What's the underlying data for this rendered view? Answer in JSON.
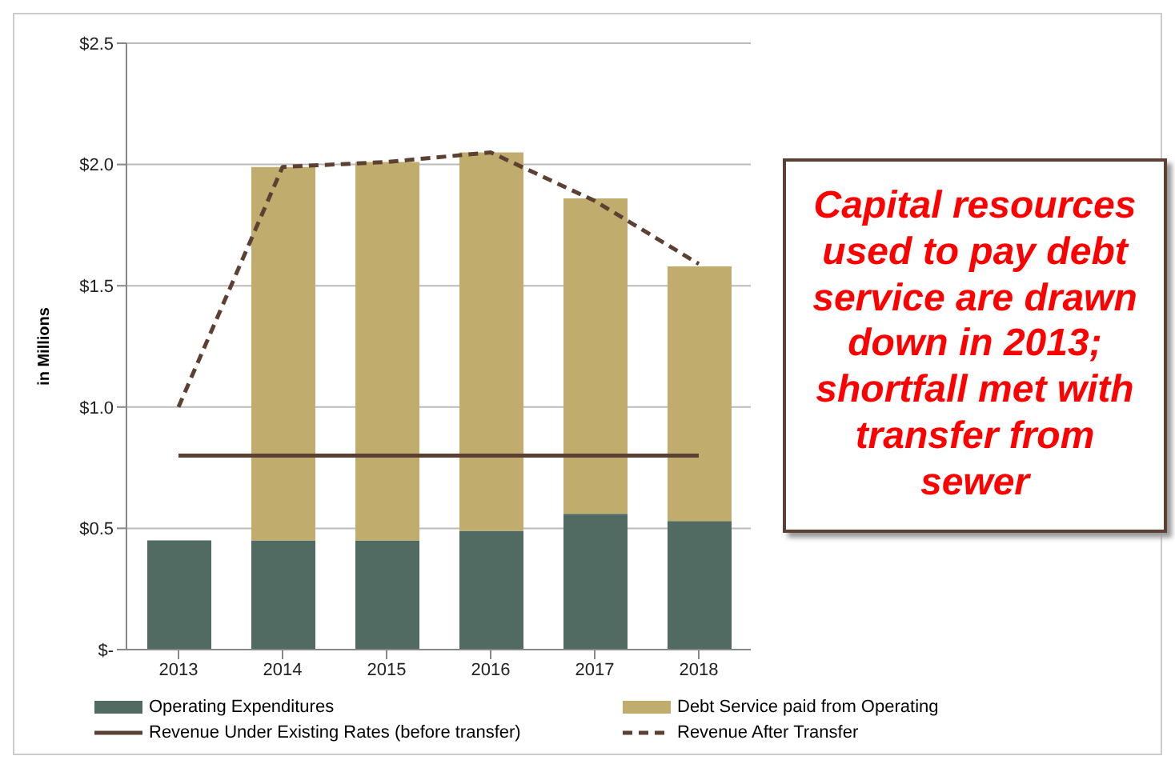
{
  "chart_data": {
    "type": "bar",
    "stacked": true,
    "ylabel": "in Millions",
    "categories": [
      "2013",
      "2014",
      "2015",
      "2016",
      "2017",
      "2018"
    ],
    "series": [
      {
        "name": "Operating Expenditures",
        "color": "#516b63",
        "values": [
          0.45,
          0.45,
          0.45,
          0.49,
          0.56,
          0.53
        ]
      },
      {
        "name": "Debt Service paid  from Operating",
        "color": "#c0ad6e",
        "values": [
          null,
          1.54,
          1.56,
          1.56,
          1.3,
          1.05
        ]
      },
      {
        "name": "Revenue Under Existing Rates (before transfer)",
        "type": "line",
        "color": "#5c4033",
        "line_style": "solid",
        "values": [
          0.8,
          0.8,
          0.8,
          0.8,
          0.8,
          0.8
        ]
      },
      {
        "name": "Revenue After Transfer",
        "type": "line",
        "color": "#5c4033",
        "line_style": "dashed",
        "values": [
          1.0,
          1.99,
          2.01,
          2.05,
          1.85,
          1.59
        ]
      }
    ],
    "ylim": [
      0,
      2.5
    ],
    "yticks": [
      {
        "value": 0,
        "label": "$-"
      },
      {
        "value": 0.5,
        "label": "$0.5"
      },
      {
        "value": 1,
        "label": "$1.0"
      },
      {
        "value": 1.5,
        "label": "$1.5"
      },
      {
        "value": 2,
        "label": "$2.0"
      },
      {
        "value": 2.5,
        "label": "$2.5"
      }
    ],
    "grid": "y",
    "legend": "bottom",
    "marker": "none",
    "annotations": [
      "Capital resources used to pay debt service are drawn down in 2013; shortfall met with transfer from sewer"
    ]
  }
}
